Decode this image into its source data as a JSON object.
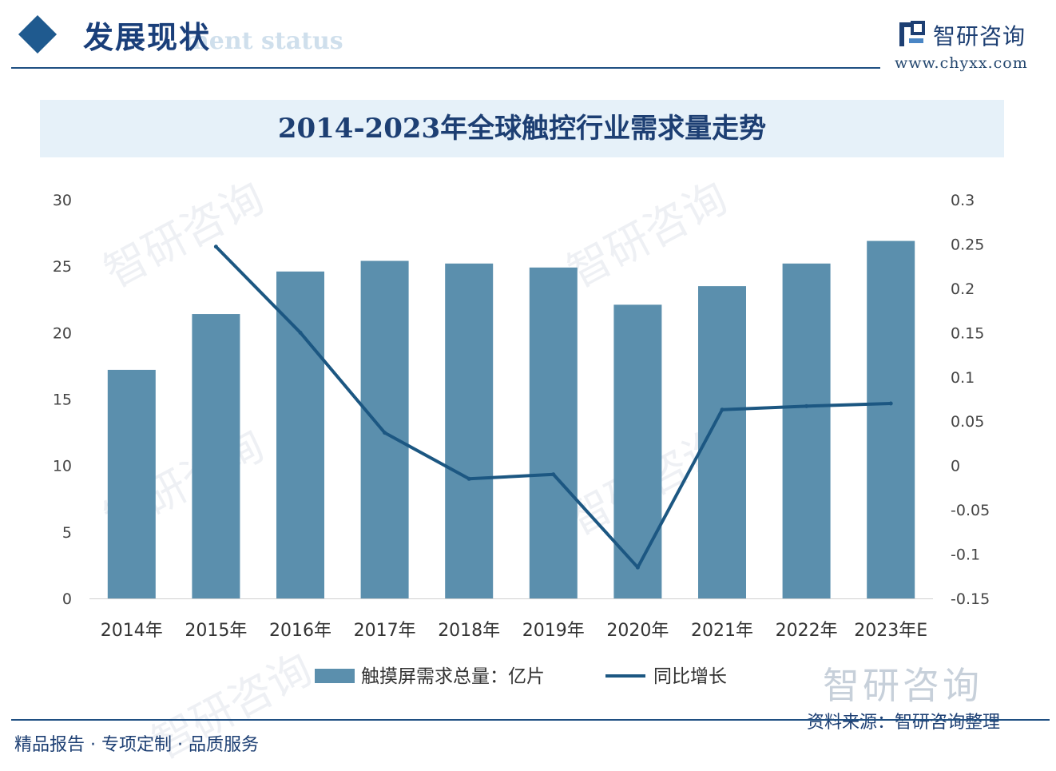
{
  "header": {
    "title": "发展现状",
    "subtitle": "ment status"
  },
  "brand": {
    "name": "智研咨询",
    "url": "www.chyxx.com",
    "watermark": "智研咨询"
  },
  "footer": {
    "tagline": "精品报告 · 专项定制 · 品质服务",
    "source": "资料来源：智研咨询整理"
  },
  "colors": {
    "bar": "#5b8fad",
    "line": "#1c5782",
    "axis_text": "#444444",
    "brand": "#1d3f73"
  },
  "chart_data": {
    "type": "bar",
    "title": "2014-2023年全球触控行业需求量走势",
    "categories": [
      "2014年",
      "2015年",
      "2016年",
      "2017年",
      "2018年",
      "2019年",
      "2020年",
      "2021年",
      "2022年",
      "2023年E"
    ],
    "series": [
      {
        "name": "触摸屏需求总量：亿片",
        "type": "bar",
        "axis": "left",
        "values": [
          17.2,
          21.4,
          24.6,
          25.4,
          25.2,
          24.9,
          22.1,
          23.5,
          25.2,
          26.9
        ]
      },
      {
        "name": "同比增长",
        "type": "line",
        "axis": "right",
        "values": [
          null,
          0.247,
          0.15,
          0.037,
          -0.015,
          -0.01,
          -0.115,
          0.063,
          0.067,
          0.07
        ]
      }
    ],
    "y_left": {
      "ylim": [
        0,
        30
      ],
      "ticks": [
        "0",
        "5",
        "10",
        "15",
        "20",
        "25",
        "30"
      ]
    },
    "y_right": {
      "ylim": [
        -0.15,
        0.3
      ],
      "ticks": [
        "-0.15",
        "-0.1",
        "-0.05",
        "0",
        "0.05",
        "0.1",
        "0.15",
        "0.2",
        "0.25",
        "0.3"
      ]
    },
    "legend_position": "bottom",
    "grid": false
  }
}
